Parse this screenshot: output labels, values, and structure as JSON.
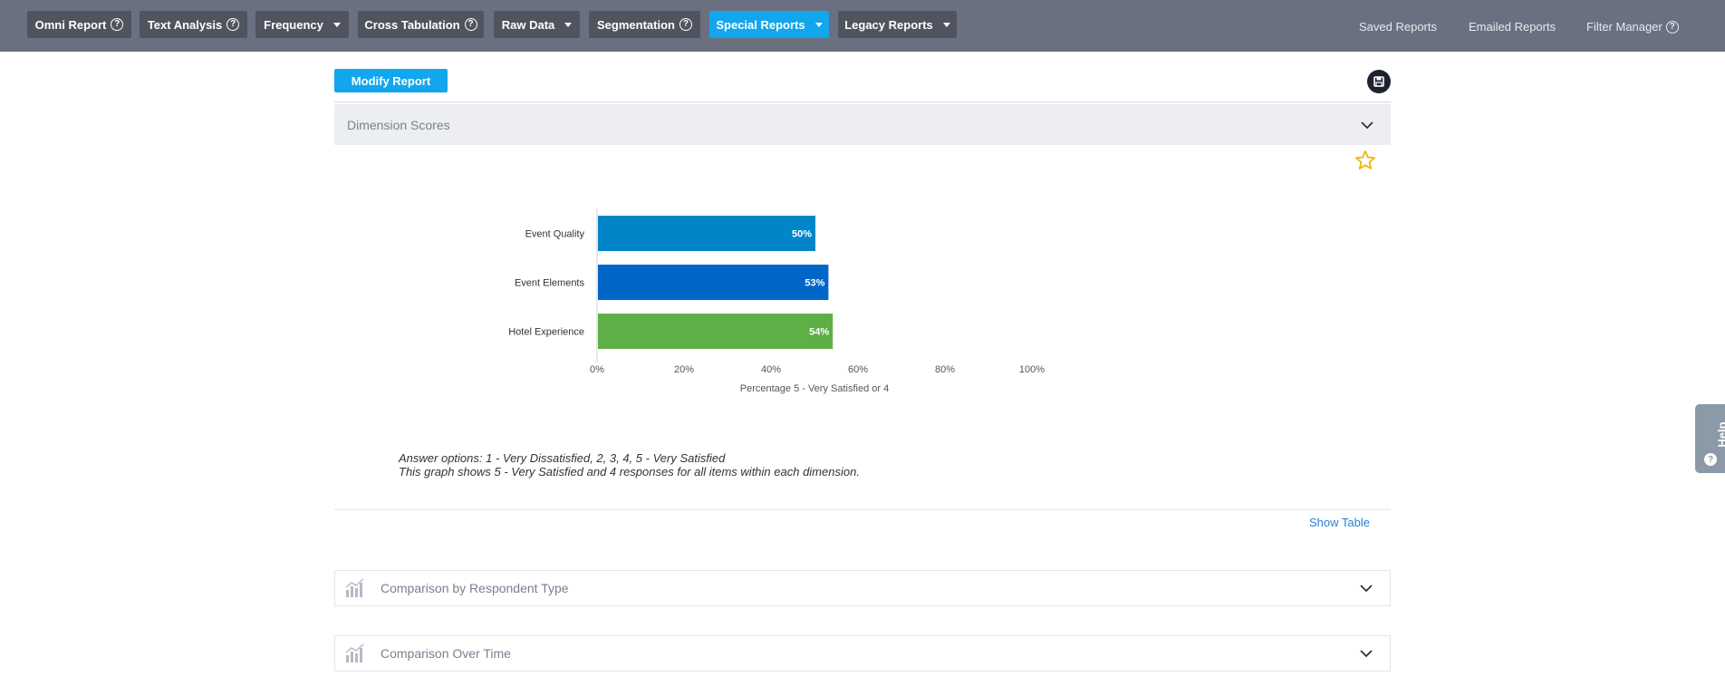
{
  "nav": {
    "items": [
      {
        "label": "Omni Report",
        "help": true,
        "dropdown": false,
        "active": false
      },
      {
        "label": "Text Analysis",
        "help": true,
        "dropdown": false,
        "active": false
      },
      {
        "label": "Frequency",
        "help": false,
        "dropdown": true,
        "active": false
      },
      {
        "label": "Cross Tabulation",
        "help": true,
        "dropdown": false,
        "active": false
      },
      {
        "label": "Raw Data",
        "help": false,
        "dropdown": true,
        "active": false
      },
      {
        "label": "Segmentation",
        "help": true,
        "dropdown": false,
        "active": false
      },
      {
        "label": "Special Reports",
        "help": false,
        "dropdown": true,
        "active": true
      },
      {
        "label": "Legacy Reports",
        "help": false,
        "dropdown": true,
        "active": false
      }
    ],
    "right_links": [
      "Saved Reports",
      "Emailed Reports",
      "Filter Manager"
    ]
  },
  "toolbar": {
    "modify_label": "Modify Report"
  },
  "section": {
    "title": "Dimension Scores"
  },
  "chart_data": {
    "type": "bar",
    "orientation": "horizontal",
    "categories": [
      "Event Quality",
      "Event Elements",
      "Hotel Experience"
    ],
    "values": [
      50,
      53,
      54
    ],
    "value_labels": [
      "50%",
      "53%",
      "54%"
    ],
    "colors": [
      "#0185c9",
      "#0067c8",
      "#5faf47"
    ],
    "xlim": [
      0,
      100
    ],
    "xticks": [
      "0%",
      "20%",
      "40%",
      "60%",
      "80%",
      "100%"
    ],
    "xlabel": "Percentage 5 - Very Satisfied or 4",
    "title": "",
    "grid": false
  },
  "notes": {
    "line1": "Answer options: 1 - Very Dissatisfied, 2, 3, 4, 5 - Very Satisfied",
    "line2": "This graph shows 5 - Very Satisfied and 4 responses for all items within each dimension."
  },
  "show_table_label": "Show Table",
  "collapsed_sections": [
    "Comparison by Respondent Type",
    "Comparison Over Time"
  ],
  "help_tab_label": "Help",
  "colors": {
    "accent": "#12a6ec",
    "topbar": "#6b7080",
    "nav_button": "#50545f",
    "star": "#f2b20f"
  }
}
